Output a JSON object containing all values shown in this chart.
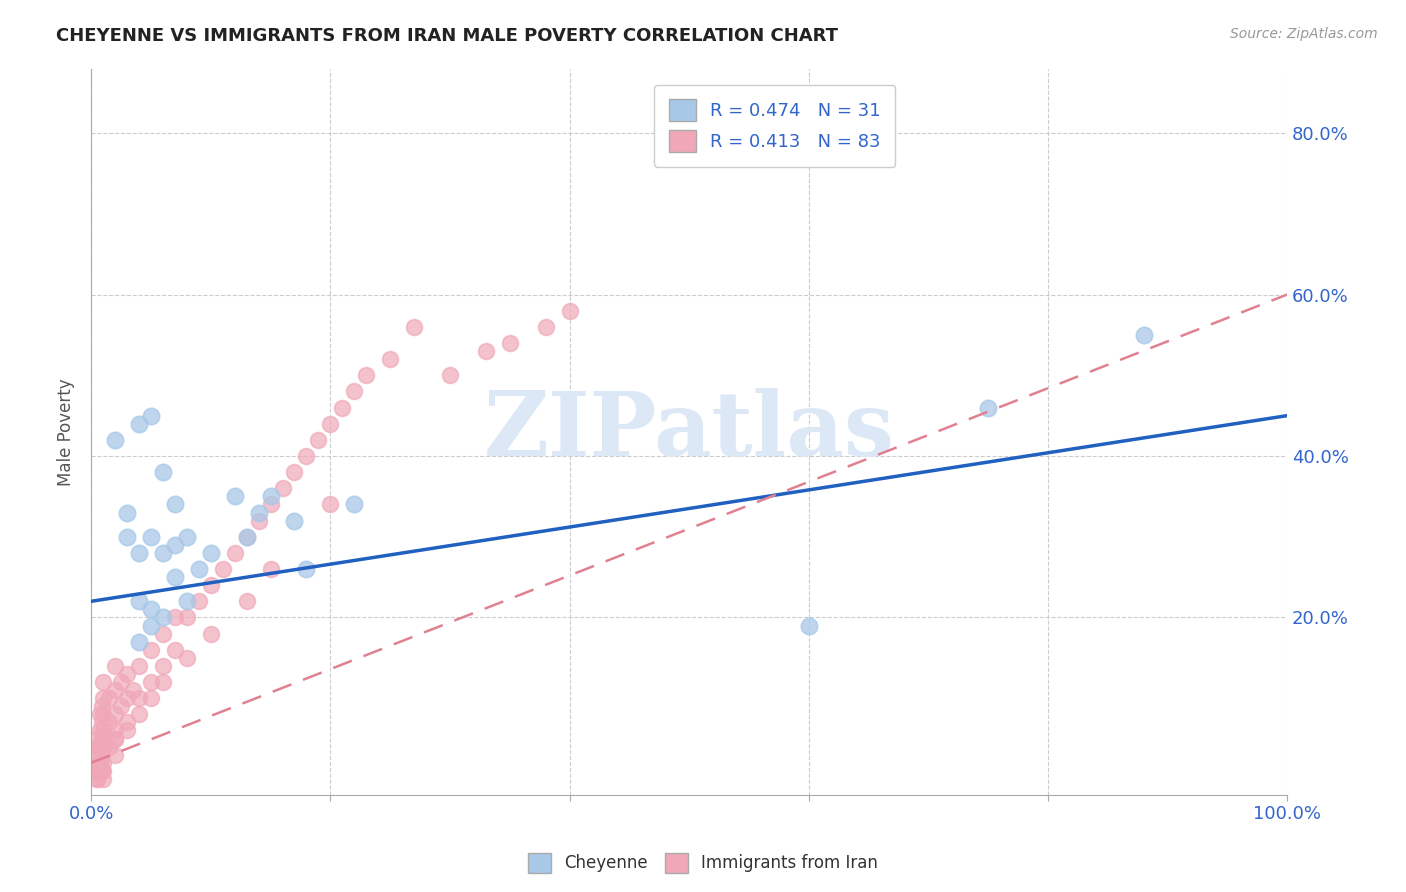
{
  "title": "CHEYENNE VS IMMIGRANTS FROM IRAN MALE POVERTY CORRELATION CHART",
  "source": "Source: ZipAtlas.com",
  "ylabel": "Male Poverty",
  "xlim": [
    0.0,
    1.0
  ],
  "ylim": [
    -0.02,
    0.88
  ],
  "xtick_positions": [
    0.0,
    0.2,
    0.4,
    0.6,
    0.8,
    1.0
  ],
  "xticklabels": [
    "0.0%",
    "",
    "",
    "",
    "",
    "100.0%"
  ],
  "ytick_positions": [
    0.2,
    0.4,
    0.6,
    0.8
  ],
  "yticklabels": [
    "20.0%",
    "40.0%",
    "60.0%",
    "80.0%"
  ],
  "cheyenne_color": "#a8c8e8",
  "iran_color": "#f0a8b8",
  "cheyenne_line_color": "#2060c0",
  "iran_line_color": "#e08090",
  "watermark_color": "#dce8f5",
  "watermark_text": "ZIPatlas",
  "background_color": "#ffffff",
  "title_color": "#222222",
  "label_color": "#3366cc",
  "ylabel_color": "#555555",
  "grid_color": "#cccccc",
  "cheyenne_line_y0": 0.22,
  "cheyenne_line_y1": 0.45,
  "iran_line_y0": 0.02,
  "iran_line_y1": 0.6,
  "cheyenne_x": [
    0.02,
    0.03,
    0.03,
    0.04,
    0.04,
    0.04,
    0.05,
    0.05,
    0.05,
    0.06,
    0.06,
    0.06,
    0.07,
    0.07,
    0.08,
    0.08,
    0.09,
    0.1,
    0.12,
    0.13,
    0.14,
    0.15,
    0.17,
    0.18,
    0.22,
    0.6,
    0.75,
    0.88,
    0.04,
    0.05,
    0.07
  ],
  "cheyenne_y": [
    0.42,
    0.3,
    0.33,
    0.44,
    0.28,
    0.22,
    0.45,
    0.3,
    0.21,
    0.38,
    0.28,
    0.2,
    0.34,
    0.25,
    0.3,
    0.22,
    0.26,
    0.28,
    0.35,
    0.3,
    0.33,
    0.35,
    0.32,
    0.26,
    0.34,
    0.19,
    0.46,
    0.55,
    0.17,
    0.19,
    0.29
  ],
  "iran_x": [
    0.005,
    0.005,
    0.005,
    0.005,
    0.005,
    0.007,
    0.007,
    0.007,
    0.007,
    0.009,
    0.009,
    0.009,
    0.009,
    0.009,
    0.01,
    0.01,
    0.01,
    0.01,
    0.01,
    0.01,
    0.015,
    0.015,
    0.015,
    0.02,
    0.02,
    0.02,
    0.02,
    0.02,
    0.025,
    0.025,
    0.03,
    0.03,
    0.03,
    0.035,
    0.04,
    0.04,
    0.05,
    0.05,
    0.06,
    0.06,
    0.07,
    0.07,
    0.08,
    0.09,
    0.1,
    0.11,
    0.12,
    0.13,
    0.14,
    0.15,
    0.16,
    0.17,
    0.18,
    0.19,
    0.2,
    0.21,
    0.22,
    0.23,
    0.25,
    0.27,
    0.3,
    0.33,
    0.35,
    0.38,
    0.4,
    0.005,
    0.005,
    0.007,
    0.007,
    0.009,
    0.01,
    0.01,
    0.02,
    0.02,
    0.03,
    0.04,
    0.05,
    0.06,
    0.08,
    0.1,
    0.13,
    0.15,
    0.2
  ],
  "iran_y": [
    0.01,
    0.02,
    0.03,
    0.04,
    0.05,
    0.02,
    0.04,
    0.06,
    0.08,
    0.01,
    0.03,
    0.05,
    0.07,
    0.09,
    0.02,
    0.04,
    0.06,
    0.08,
    0.1,
    0.12,
    0.04,
    0.07,
    0.1,
    0.05,
    0.08,
    0.11,
    0.14,
    0.06,
    0.09,
    0.12,
    0.07,
    0.1,
    0.13,
    0.11,
    0.1,
    0.14,
    0.12,
    0.16,
    0.14,
    0.18,
    0.16,
    0.2,
    0.2,
    0.22,
    0.24,
    0.26,
    0.28,
    0.3,
    0.32,
    0.34,
    0.36,
    0.38,
    0.4,
    0.42,
    0.44,
    0.46,
    0.48,
    0.5,
    0.52,
    0.56,
    0.5,
    0.53,
    0.54,
    0.56,
    0.58,
    0.0,
    0.0,
    0.01,
    0.02,
    0.03,
    0.0,
    0.01,
    0.03,
    0.05,
    0.06,
    0.08,
    0.1,
    0.12,
    0.15,
    0.18,
    0.22,
    0.26,
    0.34
  ]
}
